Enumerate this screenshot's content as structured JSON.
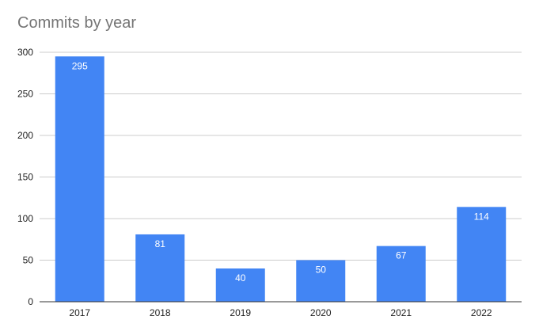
{
  "chart_data": {
    "type": "bar",
    "title": "Commits by year",
    "xlabel": "",
    "ylabel": "",
    "categories": [
      "2017",
      "2018",
      "2019",
      "2020",
      "2021",
      "2022"
    ],
    "values": [
      295,
      81,
      40,
      50,
      67,
      114
    ],
    "data_labels": [
      "295",
      "81",
      "40",
      "50",
      "67",
      "114"
    ],
    "ylim": [
      0,
      300
    ],
    "y_ticks": [
      0,
      50,
      100,
      150,
      200,
      250,
      300
    ],
    "y_tick_labels": [
      "0",
      "50",
      "100",
      "150",
      "200",
      "250",
      "300"
    ],
    "grid": true,
    "legend": "none",
    "colors": {
      "bar": "#4285f4",
      "grid": "#cccccc",
      "axis": "#333333",
      "title": "#757575",
      "label": "#ffffff"
    }
  }
}
